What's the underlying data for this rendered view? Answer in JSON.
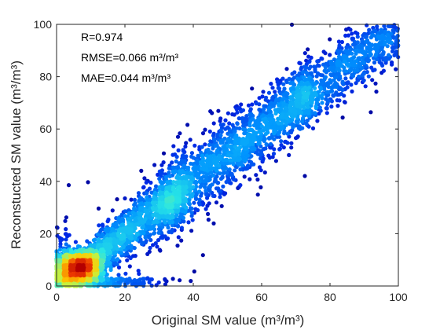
{
  "chart_data": {
    "type": "scatter",
    "title": "",
    "xlabel": "Original SM value (m³/m³)",
    "ylabel": "Reconstucted SM value (m³/m³)",
    "xlim": [
      0,
      100
    ],
    "ylim": [
      0,
      100
    ],
    "xticks": [
      "0",
      "20",
      "40",
      "60",
      "80",
      "100"
    ],
    "yticks": [
      "0",
      "20",
      "40",
      "60",
      "80",
      "100"
    ],
    "grid": false,
    "legend": "none",
    "color_encoding": "point density (blue = low, red = high)",
    "colors": {
      "low_density": "#00008f",
      "mid_low": "#0060ff",
      "mid": "#20e0ff",
      "mid_high": "#ffe000",
      "high_density": "#c00000"
    },
    "annotations": {
      "r": "R=0.974",
      "rmse": "RMSE=0.066 m³/m³",
      "mae": "MAE=0.044 m³/m³"
    },
    "relationship": {
      "approx_fit": "y ≈ x",
      "density_peak": [
        7,
        7
      ],
      "x_range": [
        0,
        100
      ],
      "y_range": [
        0,
        100
      ]
    }
  }
}
